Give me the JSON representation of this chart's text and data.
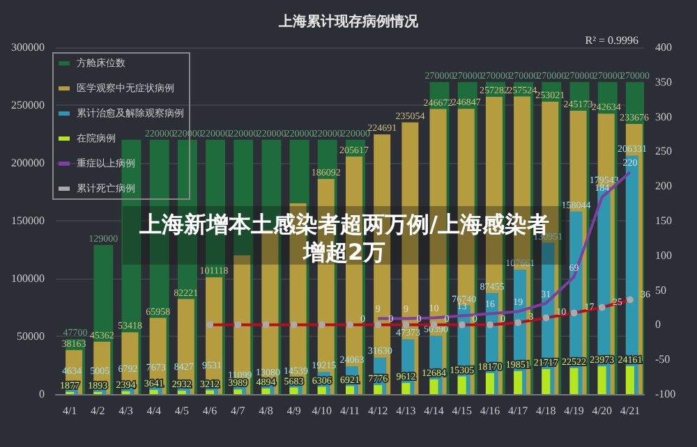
{
  "chart_data": {
    "type": "bar",
    "title": "上海累计现存病例情况",
    "categories": [
      "4/1",
      "4/2",
      "4/3",
      "4/4",
      "4/5",
      "4/6",
      "4/7",
      "4/8",
      "4/9",
      "4/10",
      "4/11",
      "4/12",
      "4/13",
      "4/14",
      "4/15",
      "4/16",
      "4/17",
      "4/18",
      "4/19",
      "4/20",
      "4/21"
    ],
    "series": [
      {
        "name": "方舱床位数",
        "color": "#1e6b3c",
        "values": [
          47700,
          129000,
          220000,
          220000,
          220000,
          220000,
          220000,
          220000,
          220000,
          220000,
          220000,
          null,
          null,
          270000,
          270000,
          270000,
          270000,
          270000,
          270000,
          270000,
          270000
        ],
        "value_labels": [
          "47700",
          "129000",
          null,
          "220000",
          "220000",
          "220000",
          "220000",
          "220000",
          "220000",
          "220000",
          "220000",
          null,
          null,
          "270000",
          "270000",
          "270000",
          "270000",
          "270000",
          "270000",
          "270000",
          "270000"
        ]
      },
      {
        "name": "医学观察中无症状病例",
        "color": "#b59c3f",
        "values": [
          38163,
          45362,
          53418,
          65958,
          82221,
          101118,
          120000,
          142000,
          165000,
          186092,
          205617,
          224691,
          235054,
          246672,
          246847,
          257282,
          257524,
          253021,
          245173,
          242634,
          233676
        ],
        "value_labels": [
          "38163",
          "45362",
          "53418",
          "65958",
          "82221",
          "101118",
          null,
          null,
          null,
          "186092",
          "205617",
          "224691",
          "235054",
          "246672",
          "246847",
          "257282",
          "257524",
          "253021",
          "245173",
          "242634",
          "233676"
        ]
      },
      {
        "name": "累计治愈及解除观察病例",
        "color": "#2f97b0",
        "values": [
          4634,
          5005,
          6792,
          7673,
          8427,
          9531,
          11099,
          13080,
          14539,
          19215,
          24063,
          31630,
          47373,
          50390,
          76740,
          87455,
          107661,
          130951,
          158044,
          179543,
          206331
        ],
        "value_labels": [
          "4634",
          "5005",
          "6792",
          "7673",
          "8427",
          "9531",
          "11099",
          "13080",
          "14539",
          "19215",
          "24063",
          "31630",
          "47373",
          "50390",
          "76740",
          "87455",
          "107661",
          "130951",
          "158044",
          "179543",
          "206331"
        ]
      },
      {
        "name": "在院病例",
        "color": "#b5e61d",
        "values": [
          1877,
          1893,
          2394,
          3641,
          2932,
          3212,
          3989,
          4894,
          5683,
          6306,
          6921,
          7776,
          9612,
          12684,
          15305,
          18170,
          19851,
          21717,
          22522,
          23973,
          24161
        ],
        "value_labels": [
          "1877",
          "1893",
          "2394",
          "3641",
          "2932",
          "3212",
          "3989",
          "4894",
          "5683",
          "6306",
          "6921",
          "7776",
          "9612",
          "12684",
          "15305",
          "18170",
          "19851",
          "21717",
          "22522",
          "23973",
          "24161"
        ]
      },
      {
        "name": "重症以上病例",
        "type": "line",
        "axis": "y2",
        "marker": "none",
        "color": "#7a3fa0",
        "values": [
          null,
          null,
          null,
          null,
          null,
          null,
          null,
          null,
          null,
          null,
          null,
          9,
          9,
          10,
          13,
          16,
          19,
          31,
          69,
          184,
          220
        ],
        "value_labels": [
          null,
          null,
          null,
          null,
          null,
          null,
          null,
          null,
          null,
          null,
          null,
          "9",
          "9",
          "10",
          "13",
          "16",
          "19",
          "31",
          "69",
          "184",
          "220"
        ]
      },
      {
        "name": "累计死亡病例",
        "type": "line",
        "axis": "y2",
        "marker": "circle",
        "color": "#b01020",
        "values": [
          null,
          null,
          null,
          null,
          null,
          0,
          0,
          0,
          0,
          0,
          0,
          0,
          0,
          0,
          0,
          0,
          3,
          10,
          17,
          25,
          36
        ],
        "value_labels": [
          null,
          null,
          null,
          null,
          null,
          null,
          null,
          null,
          null,
          null,
          "0",
          "0",
          "0",
          "0",
          "0",
          "0",
          "3",
          "10",
          "17",
          "25",
          "36"
        ]
      }
    ],
    "ylim": [
      0,
      300000
    ],
    "yticks": [
      0,
      50000,
      100000,
      150000,
      200000,
      250000,
      300000
    ],
    "y2lim": [
      -100,
      400
    ],
    "y2ticks": [
      -100,
      -50,
      0,
      50,
      100,
      150,
      200,
      250,
      300,
      350,
      400
    ],
    "grid": "y",
    "legend": "top left",
    "annotations": [
      "上海新增本土感染者超两万例/上海感染者增超2万",
      "R² = 0.9996"
    ]
  }
}
